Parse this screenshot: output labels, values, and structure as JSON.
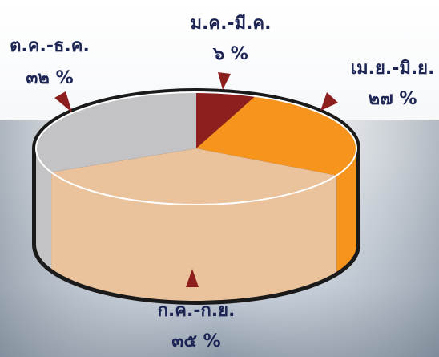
{
  "chart_data": {
    "type": "pie",
    "categories": [
      "ม.ค.-มี.ค.",
      "เม.ย.-มิ.ย.",
      "ก.ค.-ก.ย.",
      "ต.ค.-ธ.ค."
    ],
    "values": [
      6,
      27,
      35,
      32
    ],
    "value_labels": [
      "๖ %",
      "๒๗ %",
      "๓๕ %",
      "๓๒ %"
    ],
    "colors": [
      "#8e1f1f",
      "#f7941d",
      "#eac29c",
      "#c3c3c5"
    ]
  }
}
